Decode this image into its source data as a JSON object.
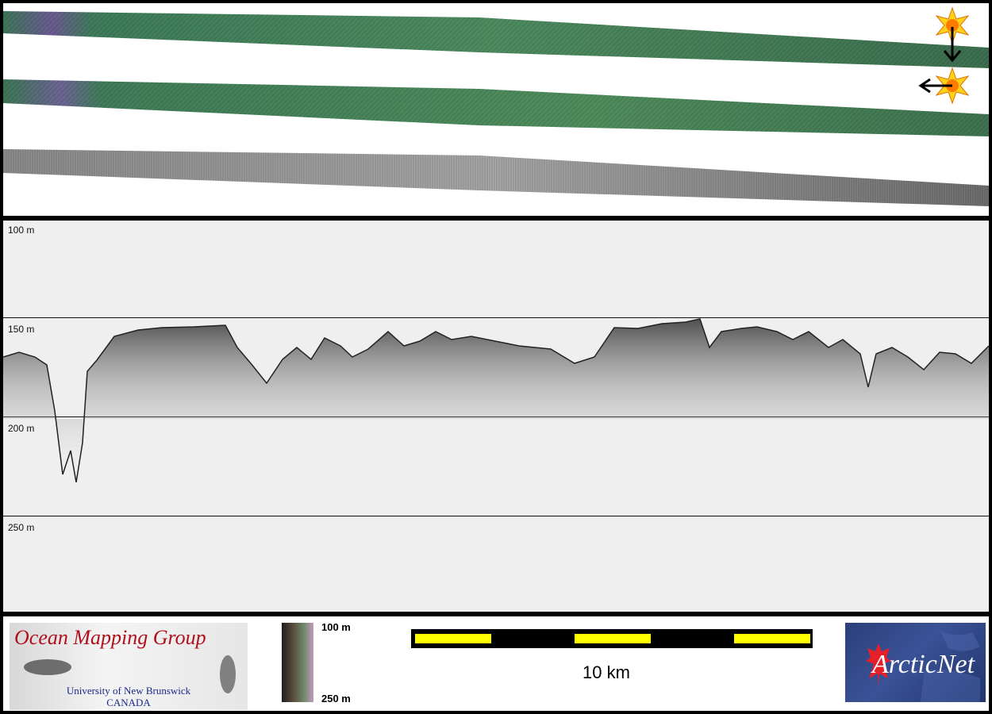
{
  "swath_panel": {
    "tracks": [
      "bathymetry-sunilluminated",
      "bathymetry-sunilluminated-alt",
      "backscatter"
    ],
    "icons": [
      "sun-icon",
      "arrow-down-icon",
      "sun-icon",
      "arrow-left-icon"
    ]
  },
  "profile": {
    "depth_labels": [
      "100 m",
      "150 m",
      "200 m",
      "250 m"
    ]
  },
  "footer": {
    "logo_title": "Ocean Mapping Group",
    "logo_sub1": "University of New Brunswick",
    "logo_sub2": "CANADA",
    "colorbar_top": "100 m",
    "colorbar_bottom": "250 m",
    "scale_label": "10 km",
    "arctic_logo": "ArcticNet"
  },
  "colors": {
    "scale_yellow": "#ffff00",
    "swath_green": "#3f7a52",
    "logo_red": "#b0101c",
    "logo_blue": "#1a2a8c"
  }
}
